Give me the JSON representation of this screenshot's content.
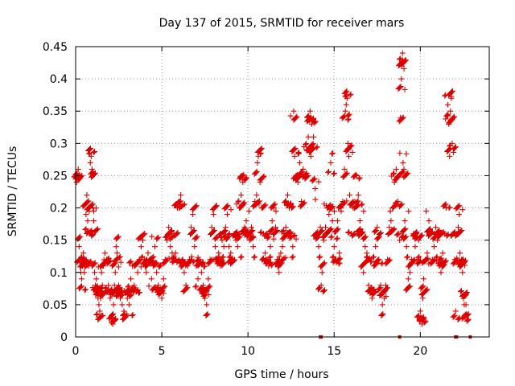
{
  "chart_data": {
    "type": "scatter",
    "title": "Day 137 of 2015, SRMTID for receiver mars",
    "xlabel": "GPS time / hours",
    "ylabel": "SRMTID / TECUs",
    "xlim": [
      0,
      24
    ],
    "ylim": [
      0,
      0.45
    ],
    "grid": true,
    "marker": "+",
    "color": "#dd0000",
    "xticks": [
      0,
      5,
      10,
      15,
      20
    ],
    "xtick_labels": [
      "0",
      "5",
      "10",
      "15",
      "20"
    ],
    "yticks": [
      0,
      0.05,
      0.1,
      0.15,
      0.2,
      0.25,
      0.3,
      0.35,
      0.4,
      0.45
    ],
    "ytick_labels": [
      "0",
      "0.05",
      "0.1",
      "0.15",
      "0.2",
      "0.25",
      "0.3",
      "0.35",
      "0.4",
      "0.45"
    ],
    "series": [
      {
        "name": "SRMTID",
        "points": [
          [
            0.05,
            0.24
          ],
          [
            0.1,
            0.25
          ],
          [
            0.15,
            0.26
          ],
          [
            0.2,
            0.14
          ],
          [
            0.25,
            0.12
          ],
          [
            0.3,
            0.1
          ],
          [
            0.35,
            0.09
          ],
          [
            0.4,
            0.11
          ],
          [
            0.45,
            0.13
          ],
          [
            0.5,
            0.1
          ],
          [
            0.55,
            0.12
          ],
          [
            0.6,
            0.19
          ],
          [
            0.65,
            0.22
          ],
          [
            0.7,
            0.18
          ],
          [
            0.75,
            0.11
          ],
          [
            0.8,
            0.16
          ],
          [
            0.85,
            0.27
          ],
          [
            0.9,
            0.28
          ],
          [
            0.95,
            0.26
          ],
          [
            1.0,
            0.2
          ],
          [
            1.05,
            0.18
          ],
          [
            1.1,
            0.1
          ],
          [
            1.15,
            0.08
          ],
          [
            1.2,
            0.09
          ],
          [
            1.25,
            0.07
          ],
          [
            1.3,
            0.06
          ],
          [
            1.35,
            0.05
          ],
          [
            1.4,
            0.04
          ],
          [
            1.45,
            0.06
          ],
          [
            1.5,
            0.1
          ],
          [
            1.55,
            0.08
          ],
          [
            1.6,
            0.11
          ],
          [
            1.7,
            0.13
          ],
          [
            1.8,
            0.12
          ],
          [
            1.9,
            0.08
          ],
          [
            2.0,
            0.06
          ],
          [
            2.1,
            0.03
          ],
          [
            2.15,
            0.02
          ],
          [
            2.2,
            0.05
          ],
          [
            2.25,
            0.08
          ],
          [
            2.3,
            0.1
          ],
          [
            2.35,
            0.14
          ],
          [
            2.4,
            0.13
          ],
          [
            2.5,
            0.08
          ],
          [
            2.6,
            0.06
          ],
          [
            2.7,
            0.05
          ],
          [
            2.8,
            0.04
          ],
          [
            2.9,
            0.07
          ],
          [
            3.0,
            0.06
          ],
          [
            3.1,
            0.05
          ],
          [
            3.2,
            0.09
          ],
          [
            3.3,
            0.11
          ],
          [
            3.4,
            0.08
          ],
          [
            3.5,
            0.07
          ],
          [
            3.6,
            0.1
          ],
          [
            3.7,
            0.12
          ],
          [
            3.8,
            0.14
          ],
          [
            3.9,
            0.15
          ],
          [
            4.0,
            0.12
          ],
          [
            4.1,
            0.1
          ],
          [
            4.2,
            0.13
          ],
          [
            4.3,
            0.12
          ],
          [
            4.4,
            0.09
          ],
          [
            4.5,
            0.11
          ],
          [
            4.6,
            0.14
          ],
          [
            4.7,
            0.1
          ],
          [
            4.8,
            0.08
          ],
          [
            4.9,
            0.07
          ],
          [
            5.0,
            0.06
          ],
          [
            5.1,
            0.09
          ],
          [
            5.2,
            0.12
          ],
          [
            5.3,
            0.15
          ],
          [
            5.4,
            0.17
          ],
          [
            5.5,
            0.14
          ],
          [
            5.6,
            0.13
          ],
          [
            5.7,
            0.16
          ],
          [
            5.8,
            0.13
          ],
          [
            5.9,
            0.2
          ],
          [
            6.0,
            0.21
          ],
          [
            6.1,
            0.22
          ],
          [
            6.2,
            0.12
          ],
          [
            6.3,
            0.1
          ],
          [
            6.4,
            0.08
          ],
          [
            6.5,
            0.11
          ],
          [
            6.6,
            0.12
          ],
          [
            6.7,
            0.17
          ],
          [
            6.8,
            0.19
          ],
          [
            6.9,
            0.14
          ],
          [
            7.0,
            0.11
          ],
          [
            7.1,
            0.09
          ],
          [
            7.2,
            0.12
          ],
          [
            7.3,
            0.1
          ],
          [
            7.4,
            0.08
          ],
          [
            7.5,
            0.06
          ],
          [
            7.6,
            0.05
          ],
          [
            7.7,
            0.09
          ],
          [
            7.8,
            0.12
          ],
          [
            7.9,
            0.17
          ],
          [
            8.0,
            0.19
          ],
          [
            8.1,
            0.14
          ],
          [
            8.2,
            0.12
          ],
          [
            8.3,
            0.13
          ],
          [
            8.4,
            0.11
          ],
          [
            8.5,
            0.15
          ],
          [
            8.6,
            0.14
          ],
          [
            8.7,
            0.17
          ],
          [
            8.8,
            0.19
          ],
          [
            8.9,
            0.14
          ],
          [
            9.0,
            0.13
          ],
          [
            9.1,
            0.12
          ],
          [
            9.2,
            0.16
          ],
          [
            9.3,
            0.15
          ],
          [
            9.4,
            0.14
          ],
          [
            9.5,
            0.2
          ],
          [
            9.6,
            0.22
          ],
          [
            9.65,
            0.25
          ],
          [
            9.7,
            0.24
          ],
          [
            9.8,
            0.17
          ],
          [
            9.9,
            0.18
          ],
          [
            10.0,
            0.16
          ],
          [
            10.1,
            0.15
          ],
          [
            10.2,
            0.17
          ],
          [
            10.3,
            0.14
          ],
          [
            10.4,
            0.21
          ],
          [
            10.5,
            0.22
          ],
          [
            10.55,
            0.27
          ],
          [
            10.6,
            0.28
          ],
          [
            10.7,
            0.24
          ],
          [
            10.8,
            0.2
          ],
          [
            10.9,
            0.16
          ],
          [
            11.0,
            0.13
          ],
          [
            11.1,
            0.12
          ],
          [
            11.2,
            0.11
          ],
          [
            11.3,
            0.14
          ],
          [
            11.4,
            0.18
          ],
          [
            11.5,
            0.2
          ],
          [
            11.6,
            0.17
          ],
          [
            11.7,
            0.12
          ],
          [
            11.8,
            0.1
          ],
          [
            11.9,
            0.13
          ],
          [
            12.0,
            0.14
          ],
          [
            12.1,
            0.16
          ],
          [
            12.2,
            0.17
          ],
          [
            12.3,
            0.22
          ],
          [
            12.4,
            0.2
          ],
          [
            12.5,
            0.16
          ],
          [
            12.6,
            0.14
          ],
          [
            12.65,
            0.35
          ],
          [
            12.7,
            0.28
          ],
          [
            12.8,
            0.25
          ],
          [
            12.9,
            0.24
          ],
          [
            13.0,
            0.27
          ],
          [
            13.1,
            0.21
          ],
          [
            13.2,
            0.26
          ],
          [
            13.3,
            0.25
          ],
          [
            13.4,
            0.29
          ],
          [
            13.5,
            0.31
          ],
          [
            13.55,
            0.34
          ],
          [
            13.6,
            0.35
          ],
          [
            13.65,
            0.28
          ],
          [
            13.7,
            0.33
          ],
          [
            13.8,
            0.31
          ],
          [
            13.9,
            0.23
          ],
          [
            14.0,
            0.16
          ],
          [
            14.1,
            0.14
          ],
          [
            14.2,
            0.17
          ],
          [
            14.25,
            0.08
          ],
          [
            14.3,
            0.1
          ],
          [
            14.4,
            0.15
          ],
          [
            14.5,
            0.17
          ],
          [
            14.6,
            0.2
          ],
          [
            14.7,
            0.19
          ],
          [
            14.8,
            0.27
          ],
          [
            14.9,
            0.18
          ],
          [
            15.0,
            0.14
          ],
          [
            15.1,
            0.12
          ],
          [
            15.2,
            0.18
          ],
          [
            15.3,
            0.13
          ],
          [
            15.4,
            0.2
          ],
          [
            15.5,
            0.21
          ],
          [
            15.6,
            0.26
          ],
          [
            15.65,
            0.35
          ],
          [
            15.7,
            0.36
          ],
          [
            15.75,
            0.37
          ],
          [
            15.8,
            0.3
          ],
          [
            15.85,
            0.28
          ],
          [
            15.9,
            0.22
          ],
          [
            16.0,
            0.16
          ],
          [
            16.1,
            0.2
          ],
          [
            16.2,
            0.21
          ],
          [
            16.3,
            0.25
          ],
          [
            16.4,
            0.22
          ],
          [
            16.5,
            0.18
          ],
          [
            16.6,
            0.16
          ],
          [
            16.7,
            0.1
          ],
          [
            16.8,
            0.14
          ],
          [
            16.9,
            0.13
          ],
          [
            17.0,
            0.08
          ],
          [
            17.1,
            0.07
          ],
          [
            17.2,
            0.06
          ],
          [
            17.3,
            0.11
          ],
          [
            17.4,
            0.14
          ],
          [
            17.5,
            0.17
          ],
          [
            17.6,
            0.12
          ],
          [
            17.7,
            0.08
          ],
          [
            17.8,
            0.05
          ],
          [
            17.9,
            0.06
          ],
          [
            18.0,
            0.08
          ],
          [
            18.1,
            0.12
          ],
          [
            18.2,
            0.17
          ],
          [
            18.3,
            0.18
          ],
          [
            18.4,
            0.2
          ],
          [
            18.5,
            0.24
          ],
          [
            18.6,
            0.26
          ],
          [
            18.7,
            0.21
          ],
          [
            18.8,
            0.15
          ],
          [
            18.85,
            0.34
          ],
          [
            18.9,
            0.4
          ],
          [
            18.92,
            0.42
          ],
          [
            18.95,
            0.43
          ],
          [
            18.97,
            0.44
          ],
          [
            19.0,
            0.27
          ],
          [
            19.05,
            0.26
          ],
          [
            19.1,
            0.18
          ],
          [
            19.2,
            0.14
          ],
          [
            19.3,
            0.09
          ],
          [
            19.4,
            0.1
          ],
          [
            19.5,
            0.12
          ],
          [
            19.6,
            0.16
          ],
          [
            19.7,
            0.14
          ],
          [
            19.8,
            0.12
          ],
          [
            19.9,
            0.15
          ],
          [
            20.0,
            0.04
          ],
          [
            20.05,
            0.03
          ],
          [
            20.1,
            0.02
          ],
          [
            20.15,
            0.06
          ],
          [
            20.2,
            0.09
          ],
          [
            20.3,
            0.12
          ],
          [
            20.4,
            0.13
          ],
          [
            20.5,
            0.18
          ],
          [
            20.6,
            0.16
          ],
          [
            20.7,
            0.12
          ],
          [
            20.8,
            0.14
          ],
          [
            20.9,
            0.17
          ],
          [
            21.0,
            0.15
          ],
          [
            21.1,
            0.11
          ],
          [
            21.2,
            0.1
          ],
          [
            21.3,
            0.13
          ],
          [
            21.4,
            0.16
          ],
          [
            21.5,
            0.2
          ],
          [
            21.6,
            0.36
          ],
          [
            21.65,
            0.33
          ],
          [
            21.7,
            0.28
          ],
          [
            21.75,
            0.35
          ],
          [
            21.8,
            0.37
          ],
          [
            21.85,
            0.3
          ],
          [
            21.9,
            0.16
          ],
          [
            22.0,
            0.12
          ],
          [
            22.05,
            0.04
          ],
          [
            22.1,
            0.16
          ],
          [
            22.2,
            0.17
          ],
          [
            22.25,
            0.19
          ],
          [
            22.3,
            0.13
          ],
          [
            22.35,
            0.11
          ],
          [
            22.4,
            0.12
          ],
          [
            22.45,
            0.1
          ],
          [
            22.5,
            0.06
          ],
          [
            22.55,
            0.05
          ],
          [
            22.6,
            0.03
          ],
          [
            22.65,
            0.05
          ]
        ]
      }
    ],
    "near_zero_marks_x": [
      14.2,
      14.25,
      18.8,
      22.05,
      22.1,
      22.9
    ]
  }
}
